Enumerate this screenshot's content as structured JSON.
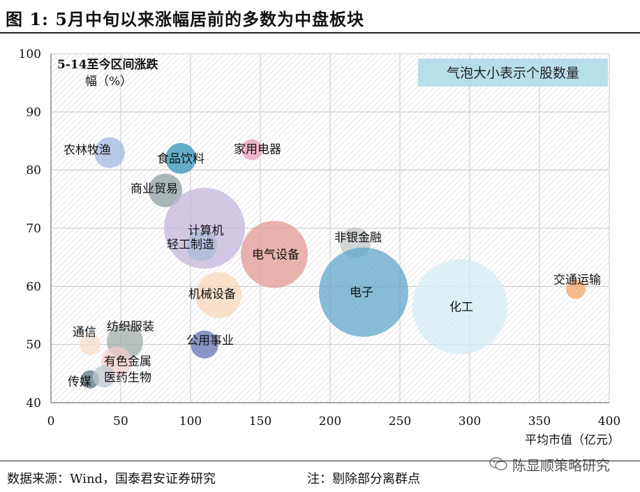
{
  "figure": {
    "title": "图 1:  5月中旬以来涨幅居前的多数为中盘板块",
    "source": "数据来源：Wind，国泰君安证券研究",
    "note": "注：剔除部分离群点",
    "watermark": "陈显顺策略研究"
  },
  "chart_data": {
    "type": "scatter",
    "subtype": "bubble",
    "title": "",
    "xlabel": "平均市值（亿元）",
    "ylabel": "5-14至今区间涨跌幅（%）",
    "ylabel_lines": [
      "5-14至今区间涨跌",
      "幅（%）"
    ],
    "legend_note": "气泡大小表示个股数量",
    "xlim": [
      0,
      400
    ],
    "ylim": [
      40,
      100
    ],
    "xticks": [
      0,
      50,
      100,
      150,
      200,
      250,
      300,
      350,
      400
    ],
    "yticks": [
      40,
      50,
      60,
      70,
      80,
      90,
      100
    ],
    "grid": true,
    "points": [
      {
        "name": "农林牧渔",
        "x": 42,
        "y": 83,
        "size": 22,
        "color": "#9fb6e0",
        "label_dx": -32,
        "label_dy": -4
      },
      {
        "name": "食品饮料",
        "x": 93,
        "y": 82,
        "size": 22,
        "color": "#2b8fb5",
        "label_dx": 0,
        "label_dy": 0
      },
      {
        "name": "家用电器",
        "x": 144,
        "y": 83.5,
        "size": 15,
        "color": "#e89ab8",
        "label_dx": 8,
        "label_dy": -1
      },
      {
        "name": "商业贸易",
        "x": 82,
        "y": 76.5,
        "size": 24,
        "color": "#8a9b9e",
        "label_dx": -16,
        "label_dy": -3
      },
      {
        "name": "计算机",
        "x": 110,
        "y": 70,
        "size": 58,
        "color": "#c3b4da",
        "label_dx": 2,
        "label_dy": 3
      },
      {
        "name": "轻工制造",
        "x": 108,
        "y": 67,
        "size": 22,
        "color": "#a8b8d8",
        "label_dx": -16,
        "label_dy": -2
      },
      {
        "name": "电气设备",
        "x": 160,
        "y": 65.5,
        "size": 48,
        "color": "#e09690",
        "label_dx": 2,
        "label_dy": 0
      },
      {
        "name": "非银金融",
        "x": 218,
        "y": 67.5,
        "size": 22,
        "color": "#c0c6c8",
        "label_dx": 4,
        "label_dy": -8
      },
      {
        "name": "电子",
        "x": 224,
        "y": 59,
        "size": 64,
        "color": "#5aa2c8",
        "label_dx": -3,
        "label_dy": 0
      },
      {
        "name": "化工",
        "x": 293,
        "y": 56.5,
        "size": 68,
        "color": "#d4eaf4",
        "label_dx": 2,
        "label_dy": 0
      },
      {
        "name": "交通运输",
        "x": 376,
        "y": 59.5,
        "size": 14,
        "color": "#f2a36a",
        "label_dx": 2,
        "label_dy": -14
      },
      {
        "name": "机械设备",
        "x": 120,
        "y": 58.5,
        "size": 33,
        "color": "#f6d6b6",
        "label_dx": -9,
        "label_dy": -2
      },
      {
        "name": "公用事业",
        "x": 110,
        "y": 50,
        "size": 20,
        "color": "#5f6fb2",
        "label_dx": 8,
        "label_dy": -6
      },
      {
        "name": "通信",
        "x": 28,
        "y": 50,
        "size": 15,
        "color": "#f7dcc8",
        "label_dx": -8,
        "label_dy": -18
      },
      {
        "name": "纺织服装",
        "x": 53,
        "y": 50.5,
        "size": 26,
        "color": "#9eaba6",
        "label_dx": 8,
        "label_dy": -22
      },
      {
        "name": "有色金属",
        "x": 47,
        "y": 47,
        "size": 22,
        "color": "#f4cccc",
        "label_dx": 16,
        "label_dy": -1
      },
      {
        "name": "传媒",
        "x": 28,
        "y": 44,
        "size": 13,
        "color": "#54707e",
        "label_dx": -15,
        "label_dy": 3
      },
      {
        "name": "医药生物",
        "x": 38,
        "y": 44.5,
        "size": 16,
        "color": "#bfc6ce",
        "label_dx": 34,
        "label_dy": 1
      }
    ]
  }
}
